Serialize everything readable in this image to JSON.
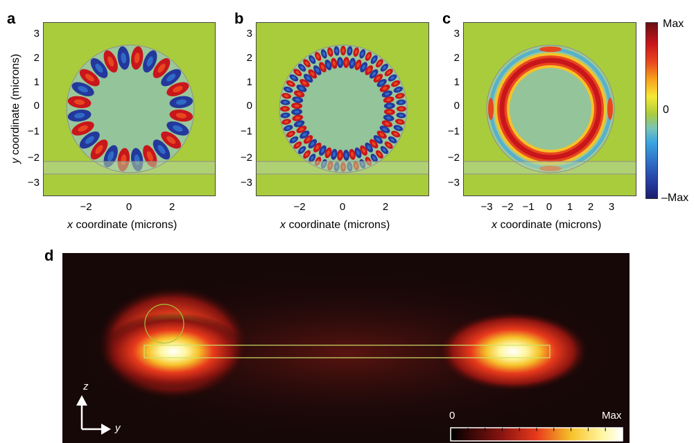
{
  "panels": {
    "a": {
      "letter": "a",
      "ylabel_italic": "y",
      "ylabel_rest": " coordinate (microns)",
      "xlabel_italic": "x",
      "xlabel_rest": " coordinate (microns)",
      "yticks": [
        "3",
        "2",
        "1",
        "0",
        "−1",
        "−2",
        "−3"
      ],
      "xticks": [
        "−2",
        "0",
        "2"
      ]
    },
    "b": {
      "letter": "b",
      "xlabel_italic": "x",
      "xlabel_rest": " coordinate (microns)",
      "yticks": [
        "3",
        "2",
        "1",
        "0",
        "−1",
        "−2",
        "−3"
      ],
      "xticks": [
        "−2",
        "0",
        "2"
      ]
    },
    "c": {
      "letter": "c",
      "xlabel_italic": "x",
      "xlabel_rest": " coordinate (microns)",
      "yticks": [
        "3",
        "2",
        "1",
        "0",
        "−1",
        "−2",
        "−3"
      ],
      "xticks": [
        "−3",
        "−2",
        "−1",
        "0",
        "1",
        "2",
        "3"
      ]
    },
    "d": {
      "letter": "d",
      "axis_z": "z",
      "axis_y": "y",
      "scale_min": "0",
      "scale_max": "Max"
    }
  },
  "colorbar": {
    "max": "Max",
    "mid": "0",
    "min": "–Max"
  },
  "colors": {
    "background_field": "#a9cc3c",
    "positive": "#c8161c",
    "negative": "#24389b",
    "outline": "#8e8e8e"
  }
}
